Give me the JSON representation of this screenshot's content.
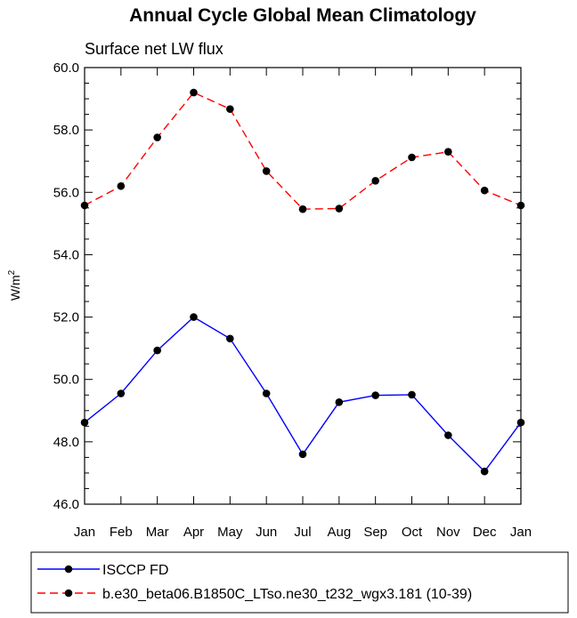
{
  "chart_data": {
    "type": "line",
    "title": "Annual Cycle Global Mean Climatology",
    "subtitle": "Surface net LW flux",
    "ylabel": "W/m",
    "ylabel_superscript": "2",
    "xlabel": "",
    "categories": [
      "Jan",
      "Feb",
      "Mar",
      "Apr",
      "May",
      "Jun",
      "Jul",
      "Aug",
      "Sep",
      "Oct",
      "Nov",
      "Dec",
      "Jan"
    ],
    "ylim": [
      46.0,
      60.0
    ],
    "yticks": [
      "46.0",
      "48.0",
      "50.0",
      "52.0",
      "54.0",
      "56.0",
      "58.0",
      "60.0"
    ],
    "grid": false,
    "legend_placement": "bottom",
    "series": [
      {
        "name": "ISCCP FD",
        "color": "#0000ff",
        "dash": "solid",
        "marker": "filled-circle",
        "values": [
          48.62,
          49.55,
          50.93,
          52.0,
          51.31,
          49.55,
          47.6,
          49.27,
          49.49,
          49.51,
          48.21,
          47.05,
          48.62
        ]
      },
      {
        "name": "b.e30_beta06.B1850C_LTso.ne30_t232_wgx3.181 (10-39)",
        "color": "#ff0000",
        "dash": "dashed",
        "marker": "filled-circle",
        "values": [
          55.58,
          56.2,
          57.76,
          59.2,
          58.67,
          56.68,
          55.46,
          55.48,
          56.37,
          57.12,
          57.3,
          56.06,
          55.58
        ]
      }
    ]
  }
}
